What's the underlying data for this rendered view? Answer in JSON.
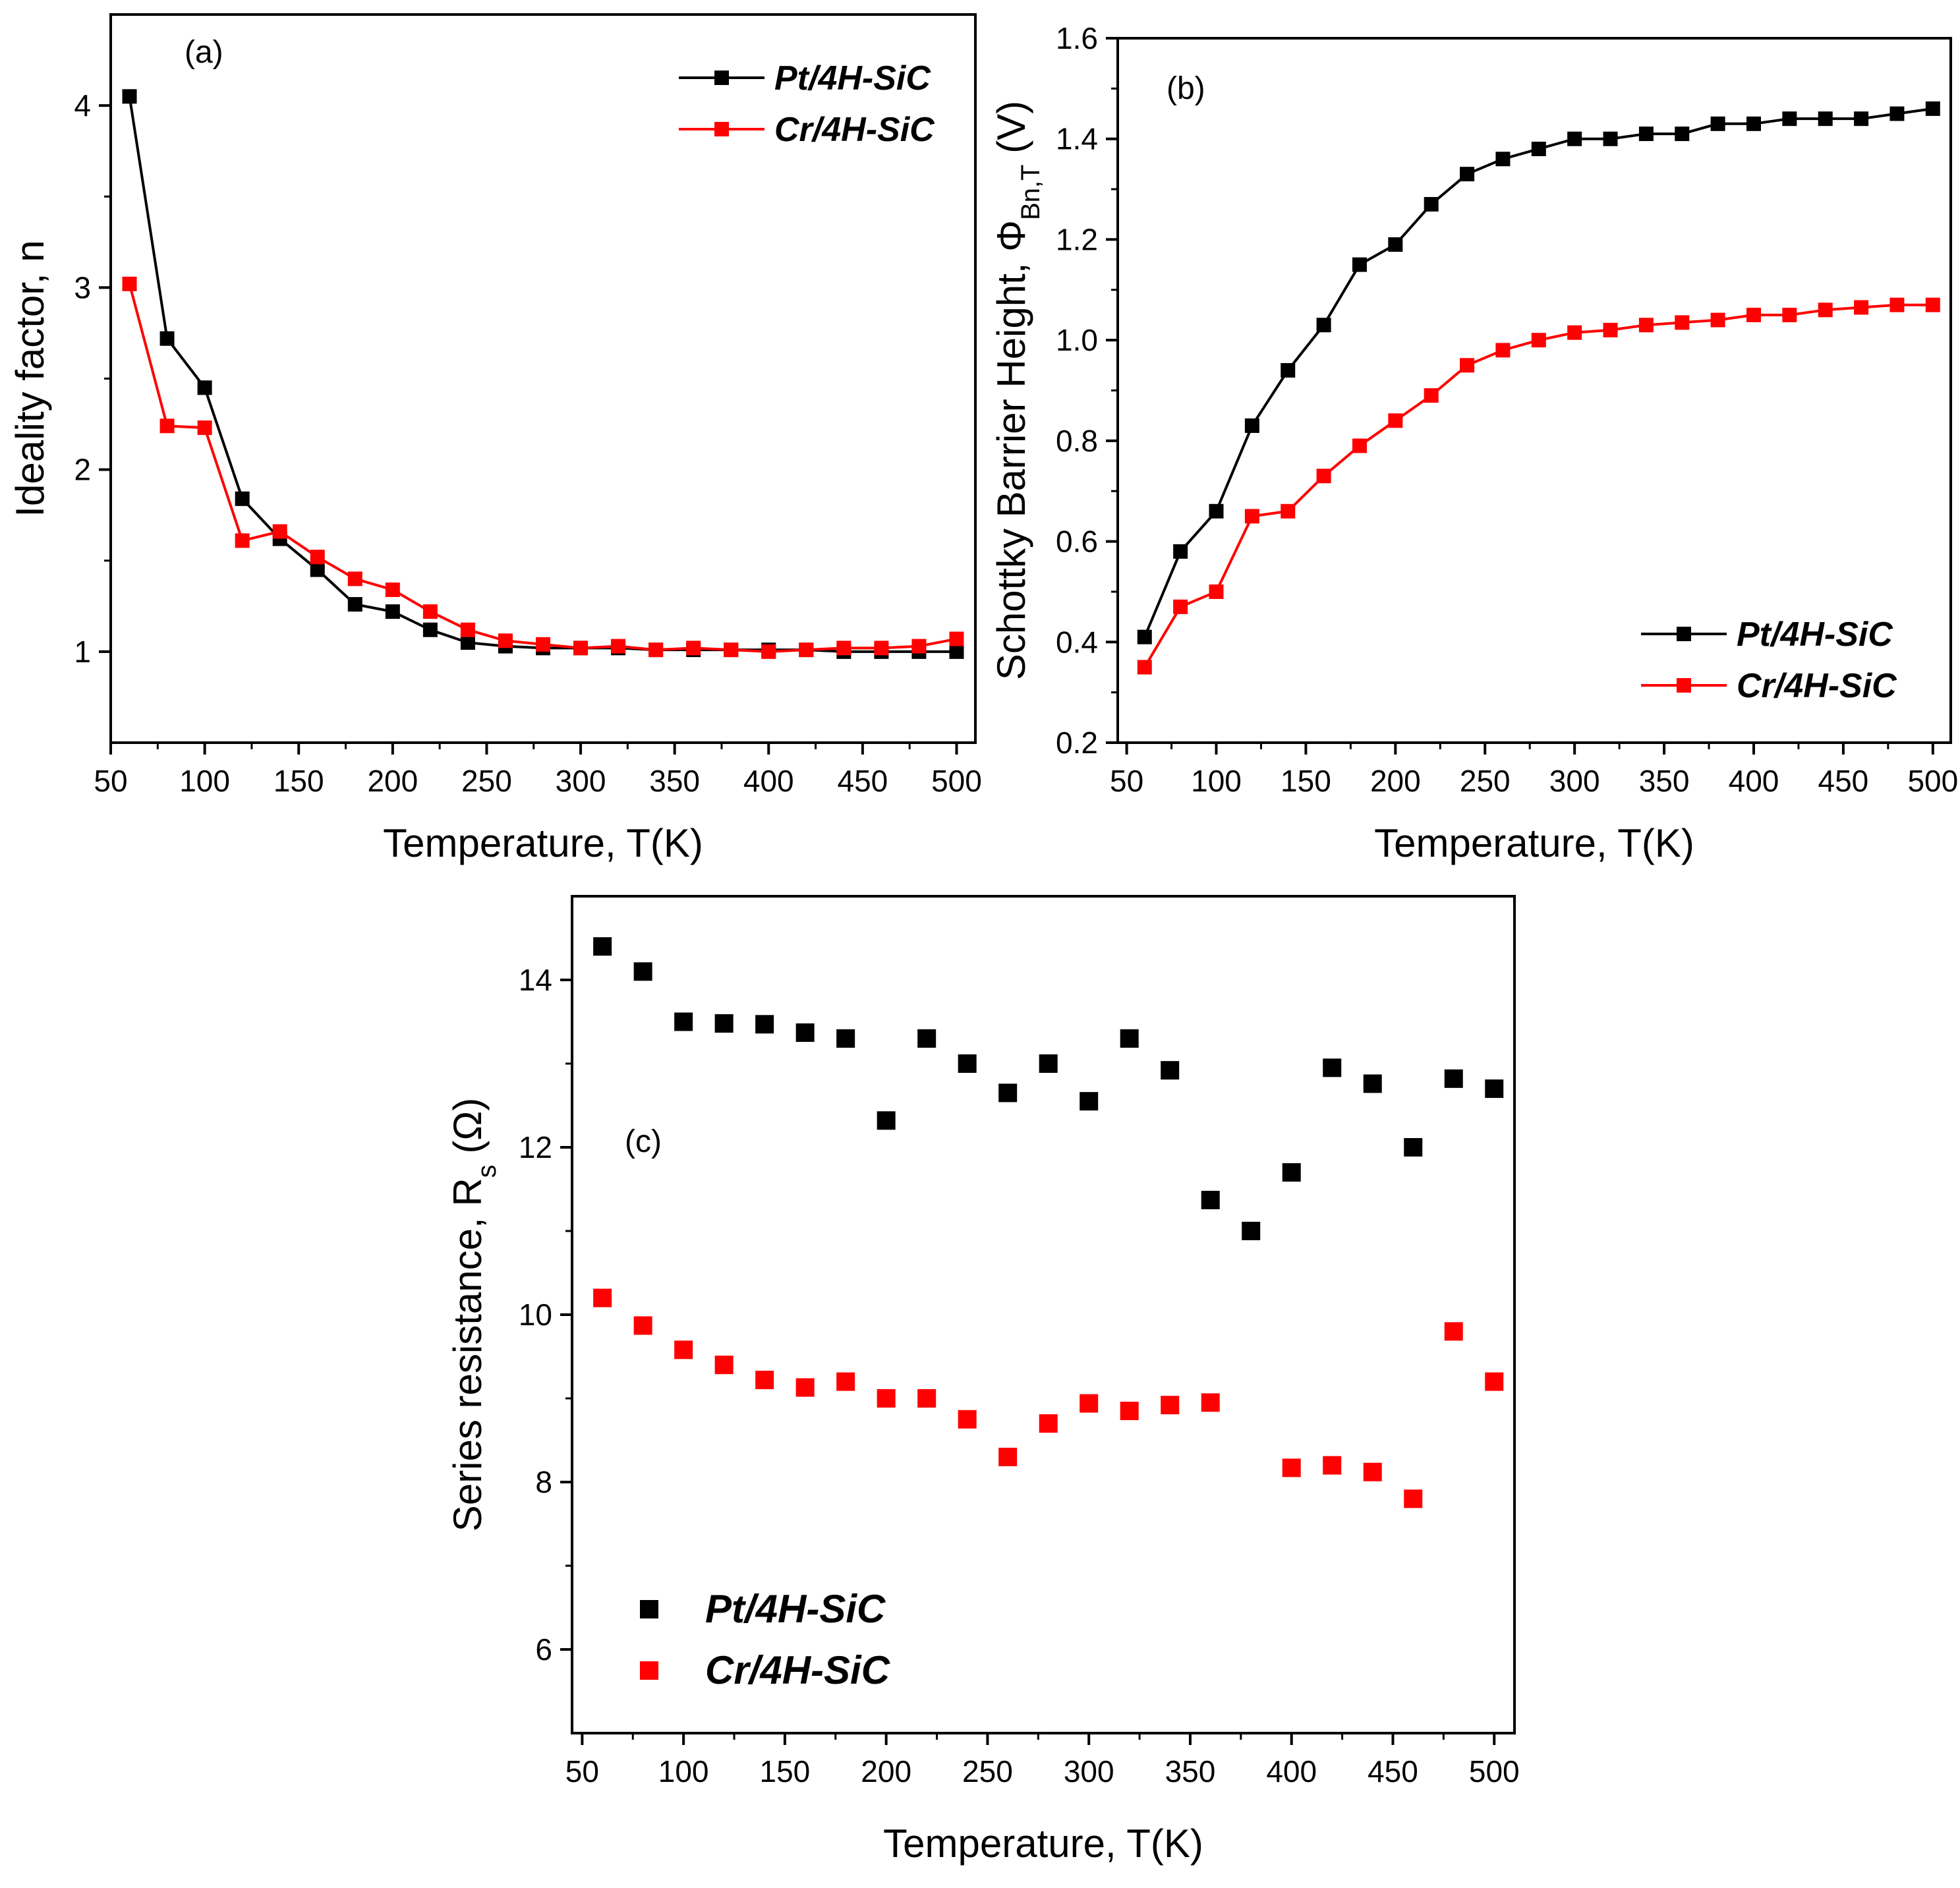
{
  "colors": {
    "series1": "#000000",
    "series2": "#ff0000",
    "axis": "#000000"
  },
  "chart_data": [
    {
      "id": "a",
      "type": "line",
      "panel_label": "(a)",
      "xlabel": "Temperature, T(K)",
      "ylabel": "Ideality factor, n",
      "xlim": [
        50,
        510
      ],
      "ylim": [
        0.5,
        4.5
      ],
      "xticks": [
        50,
        100,
        150,
        200,
        250,
        300,
        350,
        400,
        450,
        500
      ],
      "yticks": [
        1,
        2,
        3,
        4
      ],
      "ytick_labels": [
        "1",
        "2",
        "3",
        "4"
      ],
      "legend_position": "top-right",
      "x": [
        60,
        80,
        100,
        120,
        140,
        160,
        180,
        200,
        220,
        240,
        260,
        280,
        300,
        320,
        340,
        360,
        380,
        400,
        420,
        440,
        460,
        480,
        500
      ],
      "series": [
        {
          "name": "Pt/4H-SiC",
          "color": "#000000",
          "connected": true,
          "values": [
            4.05,
            2.72,
            2.45,
            1.84,
            1.62,
            1.45,
            1.26,
            1.22,
            1.12,
            1.05,
            1.03,
            1.02,
            1.02,
            1.02,
            1.01,
            1.01,
            1.01,
            1.01,
            1.01,
            1.0,
            1.0,
            1.0,
            1.0
          ]
        },
        {
          "name": "Cr/4H-SiC",
          "color": "#ff0000",
          "connected": true,
          "values": [
            3.02,
            2.24,
            2.23,
            1.61,
            1.66,
            1.52,
            1.4,
            1.34,
            1.22,
            1.12,
            1.06,
            1.04,
            1.02,
            1.03,
            1.01,
            1.02,
            1.01,
            1.0,
            1.01,
            1.02,
            1.02,
            1.03,
            1.07
          ]
        }
      ]
    },
    {
      "id": "b",
      "type": "line",
      "panel_label": "(b)",
      "xlabel": "Temperature, T(K)",
      "ylabel": "Schottky Barrier Height, ΦBn,T (V)",
      "ylabel_parts": {
        "main": "Schottky Barrier Height,  Φ",
        "sub": "Bn,T",
        "unit": " (V)"
      },
      "xlim": [
        45,
        510
      ],
      "ylim": [
        0.2,
        1.6
      ],
      "xticks": [
        50,
        100,
        150,
        200,
        250,
        300,
        350,
        400,
        450,
        500
      ],
      "yticks": [
        0.2,
        0.4,
        0.6,
        0.8,
        1.0,
        1.2,
        1.4,
        1.6
      ],
      "ytick_labels": [
        "0.2",
        "0.4",
        "0.6",
        "0.8",
        "1.0",
        "1.2",
        "1.4",
        "1.6"
      ],
      "legend_position": "bottom-right",
      "x": [
        60,
        80,
        100,
        120,
        140,
        160,
        180,
        200,
        220,
        240,
        260,
        280,
        300,
        320,
        340,
        360,
        380,
        400,
        420,
        440,
        460,
        480,
        500
      ],
      "series": [
        {
          "name": "Pt/4H-SiC",
          "color": "#000000",
          "connected": true,
          "values": [
            0.41,
            0.58,
            0.66,
            0.83,
            0.94,
            1.03,
            1.15,
            1.19,
            1.27,
            1.33,
            1.36,
            1.38,
            1.4,
            1.4,
            1.41,
            1.41,
            1.43,
            1.43,
            1.44,
            1.44,
            1.44,
            1.45,
            1.46
          ]
        },
        {
          "name": "Cr/4H-SiC",
          "color": "#ff0000",
          "connected": true,
          "values": [
            0.35,
            0.47,
            0.5,
            0.65,
            0.66,
            0.73,
            0.79,
            0.84,
            0.89,
            0.95,
            0.98,
            1.0,
            1.015,
            1.02,
            1.03,
            1.035,
            1.04,
            1.05,
            1.05,
            1.06,
            1.065,
            1.07,
            1.07
          ]
        }
      ]
    },
    {
      "id": "c",
      "type": "scatter",
      "panel_label": "(c)",
      "xlabel": "Temperature, T(K)",
      "ylabel": "Series resistance, Rs (Ω)",
      "ylabel_parts": {
        "main": "Series resistance,  R",
        "sub": "s",
        "unit": " (Ω)"
      },
      "xlim": [
        45,
        510
      ],
      "ylim": [
        5,
        15
      ],
      "xticks": [
        50,
        100,
        150,
        200,
        250,
        300,
        350,
        400,
        450,
        500
      ],
      "yticks": [
        6,
        8,
        10,
        12,
        14
      ],
      "ytick_labels": [
        "6",
        "8",
        "10",
        "12",
        "14"
      ],
      "legend_position": "bottom-left",
      "x": [
        60,
        80,
        100,
        120,
        140,
        160,
        180,
        200,
        220,
        240,
        260,
        280,
        300,
        320,
        340,
        360,
        380,
        400,
        420,
        440,
        460,
        480,
        500
      ],
      "series": [
        {
          "name": "Pt/4H-SiC",
          "color": "#000000",
          "connected": false,
          "values": [
            14.4,
            14.1,
            13.5,
            13.48,
            13.47,
            13.37,
            13.3,
            12.32,
            13.3,
            13.0,
            12.65,
            13.0,
            12.55,
            13.3,
            12.92,
            11.37,
            11.0,
            11.7,
            12.95,
            12.76,
            12.0,
            12.82,
            12.7
          ]
        },
        {
          "name": "Cr/4H-SiC",
          "color": "#ff0000",
          "connected": false,
          "values": [
            10.2,
            9.87,
            9.58,
            9.4,
            9.22,
            9.13,
            9.2,
            9.0,
            9.0,
            8.75,
            8.3,
            8.7,
            8.94,
            8.85,
            8.92,
            8.95,
            null,
            8.17,
            8.2,
            8.12,
            7.8,
            9.8,
            9.2
          ]
        }
      ]
    }
  ]
}
